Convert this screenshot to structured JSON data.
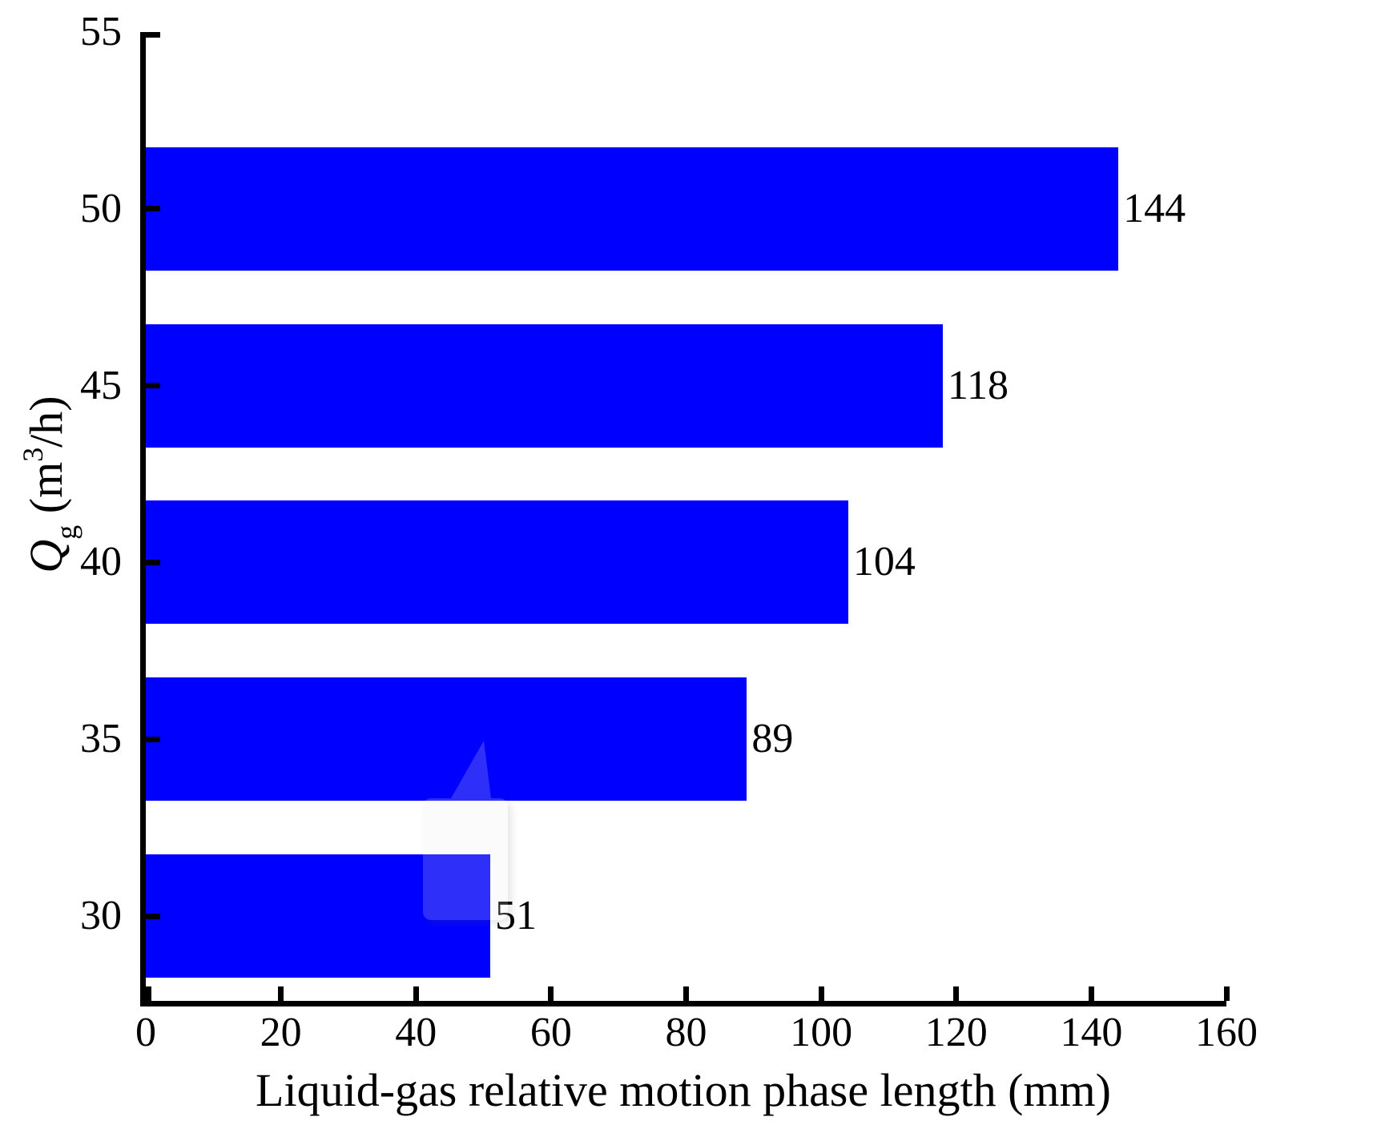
{
  "chart_data": {
    "type": "bar",
    "orientation": "horizontal",
    "title": "",
    "xlabel": "Liquid-gas relative motion phase length (mm)",
    "ylabel": {
      "symbol": "Q",
      "subscript": "g",
      "unit_pre": " (m",
      "unit_sup": "3",
      "unit_post": "/h)"
    },
    "categories": [
      50,
      45,
      40,
      35,
      30
    ],
    "values": [
      144,
      118,
      104,
      89,
      51
    ],
    "bar_labels": [
      "144",
      "118",
      "104",
      "89",
      "51"
    ],
    "xlim": [
      0,
      160
    ],
    "x_ticks": [
      0,
      20,
      40,
      60,
      80,
      100,
      120,
      140,
      160
    ],
    "x_tick_labels": [
      "0",
      "20",
      "40",
      "60",
      "80",
      "100",
      "120",
      "140",
      "160"
    ],
    "y_ticks": [
      55,
      50,
      45,
      40,
      35,
      30
    ],
    "y_tick_labels": [
      "55",
      "50",
      "45",
      "40",
      "35",
      "30"
    ],
    "grid": false,
    "legend": null,
    "colors": {
      "bar": "#0000FE",
      "axis": "#000000",
      "text": "#000000"
    }
  }
}
